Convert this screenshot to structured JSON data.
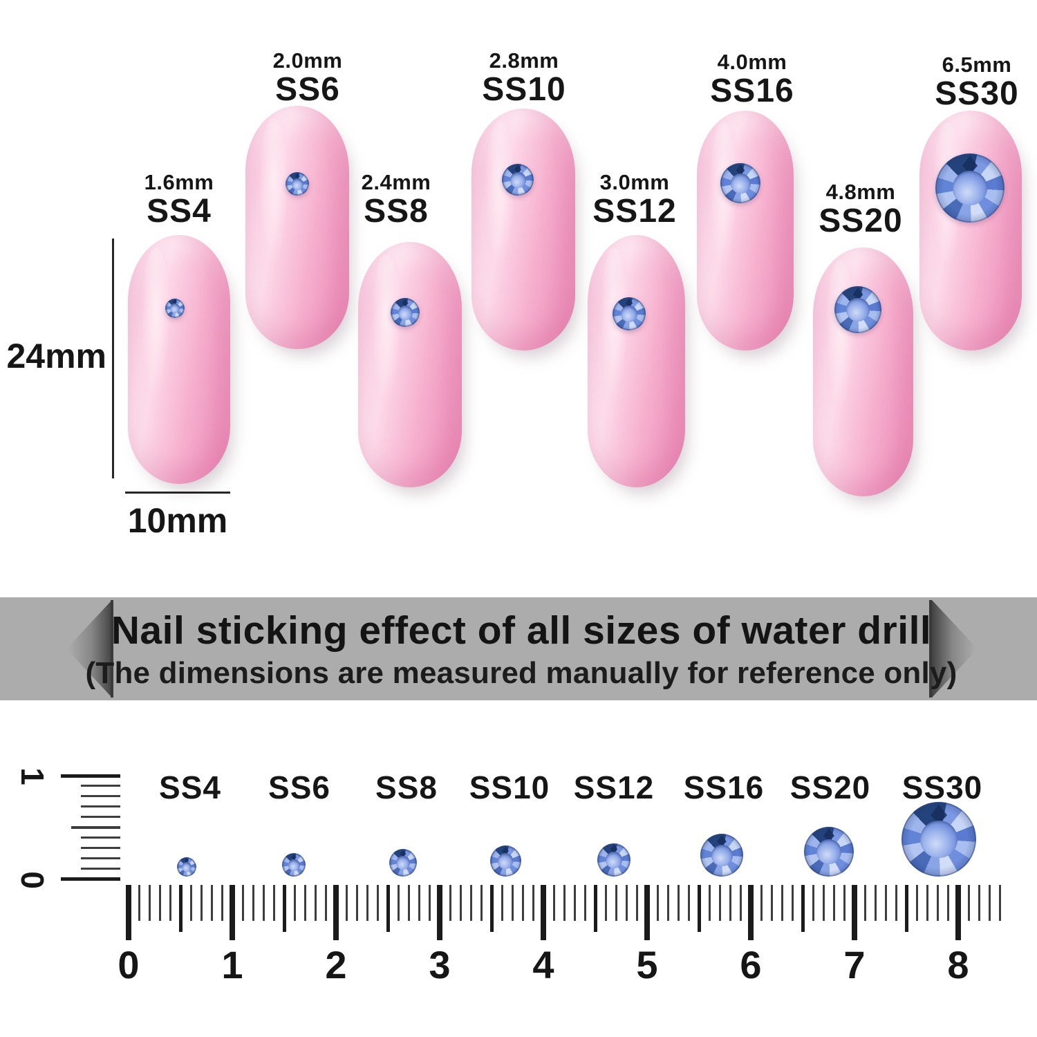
{
  "banner": {
    "line1": "Nail sticking effect of all sizes of water drill",
    "line2": "(The dimensions are measured manually for reference only)"
  },
  "dimension_labels": {
    "nail_height": "24mm",
    "nail_width": "10mm"
  },
  "nails": [
    {
      "ss": "SS4",
      "mm": "1.6mm"
    },
    {
      "ss": "SS6",
      "mm": "2.0mm"
    },
    {
      "ss": "SS8",
      "mm": "2.4mm"
    },
    {
      "ss": "SS10",
      "mm": "2.8mm"
    },
    {
      "ss": "SS12",
      "mm": "3.0mm"
    },
    {
      "ss": "SS16",
      "mm": "4.0mm"
    },
    {
      "ss": "SS20",
      "mm": "4.8mm"
    },
    {
      "ss": "SS30",
      "mm": "6.5mm"
    }
  ],
  "ruler": {
    "unit_labels": [
      "0",
      "1",
      "2",
      "3",
      "4",
      "5",
      "6",
      "7",
      "8"
    ],
    "vertical_labels": [
      "1",
      "0"
    ],
    "sizes": [
      "SS4",
      "SS6",
      "SS8",
      "SS10",
      "SS12",
      "SS16",
      "SS20",
      "SS30"
    ]
  },
  "colors": {
    "nail_pink": "#f8b8d4",
    "stone_blue": "#6f8edd",
    "stone_dark_facet": "#24437c",
    "stone_light_facet": "#c7d6f6",
    "banner_bg": "#acacac",
    "text": "#161616"
  }
}
